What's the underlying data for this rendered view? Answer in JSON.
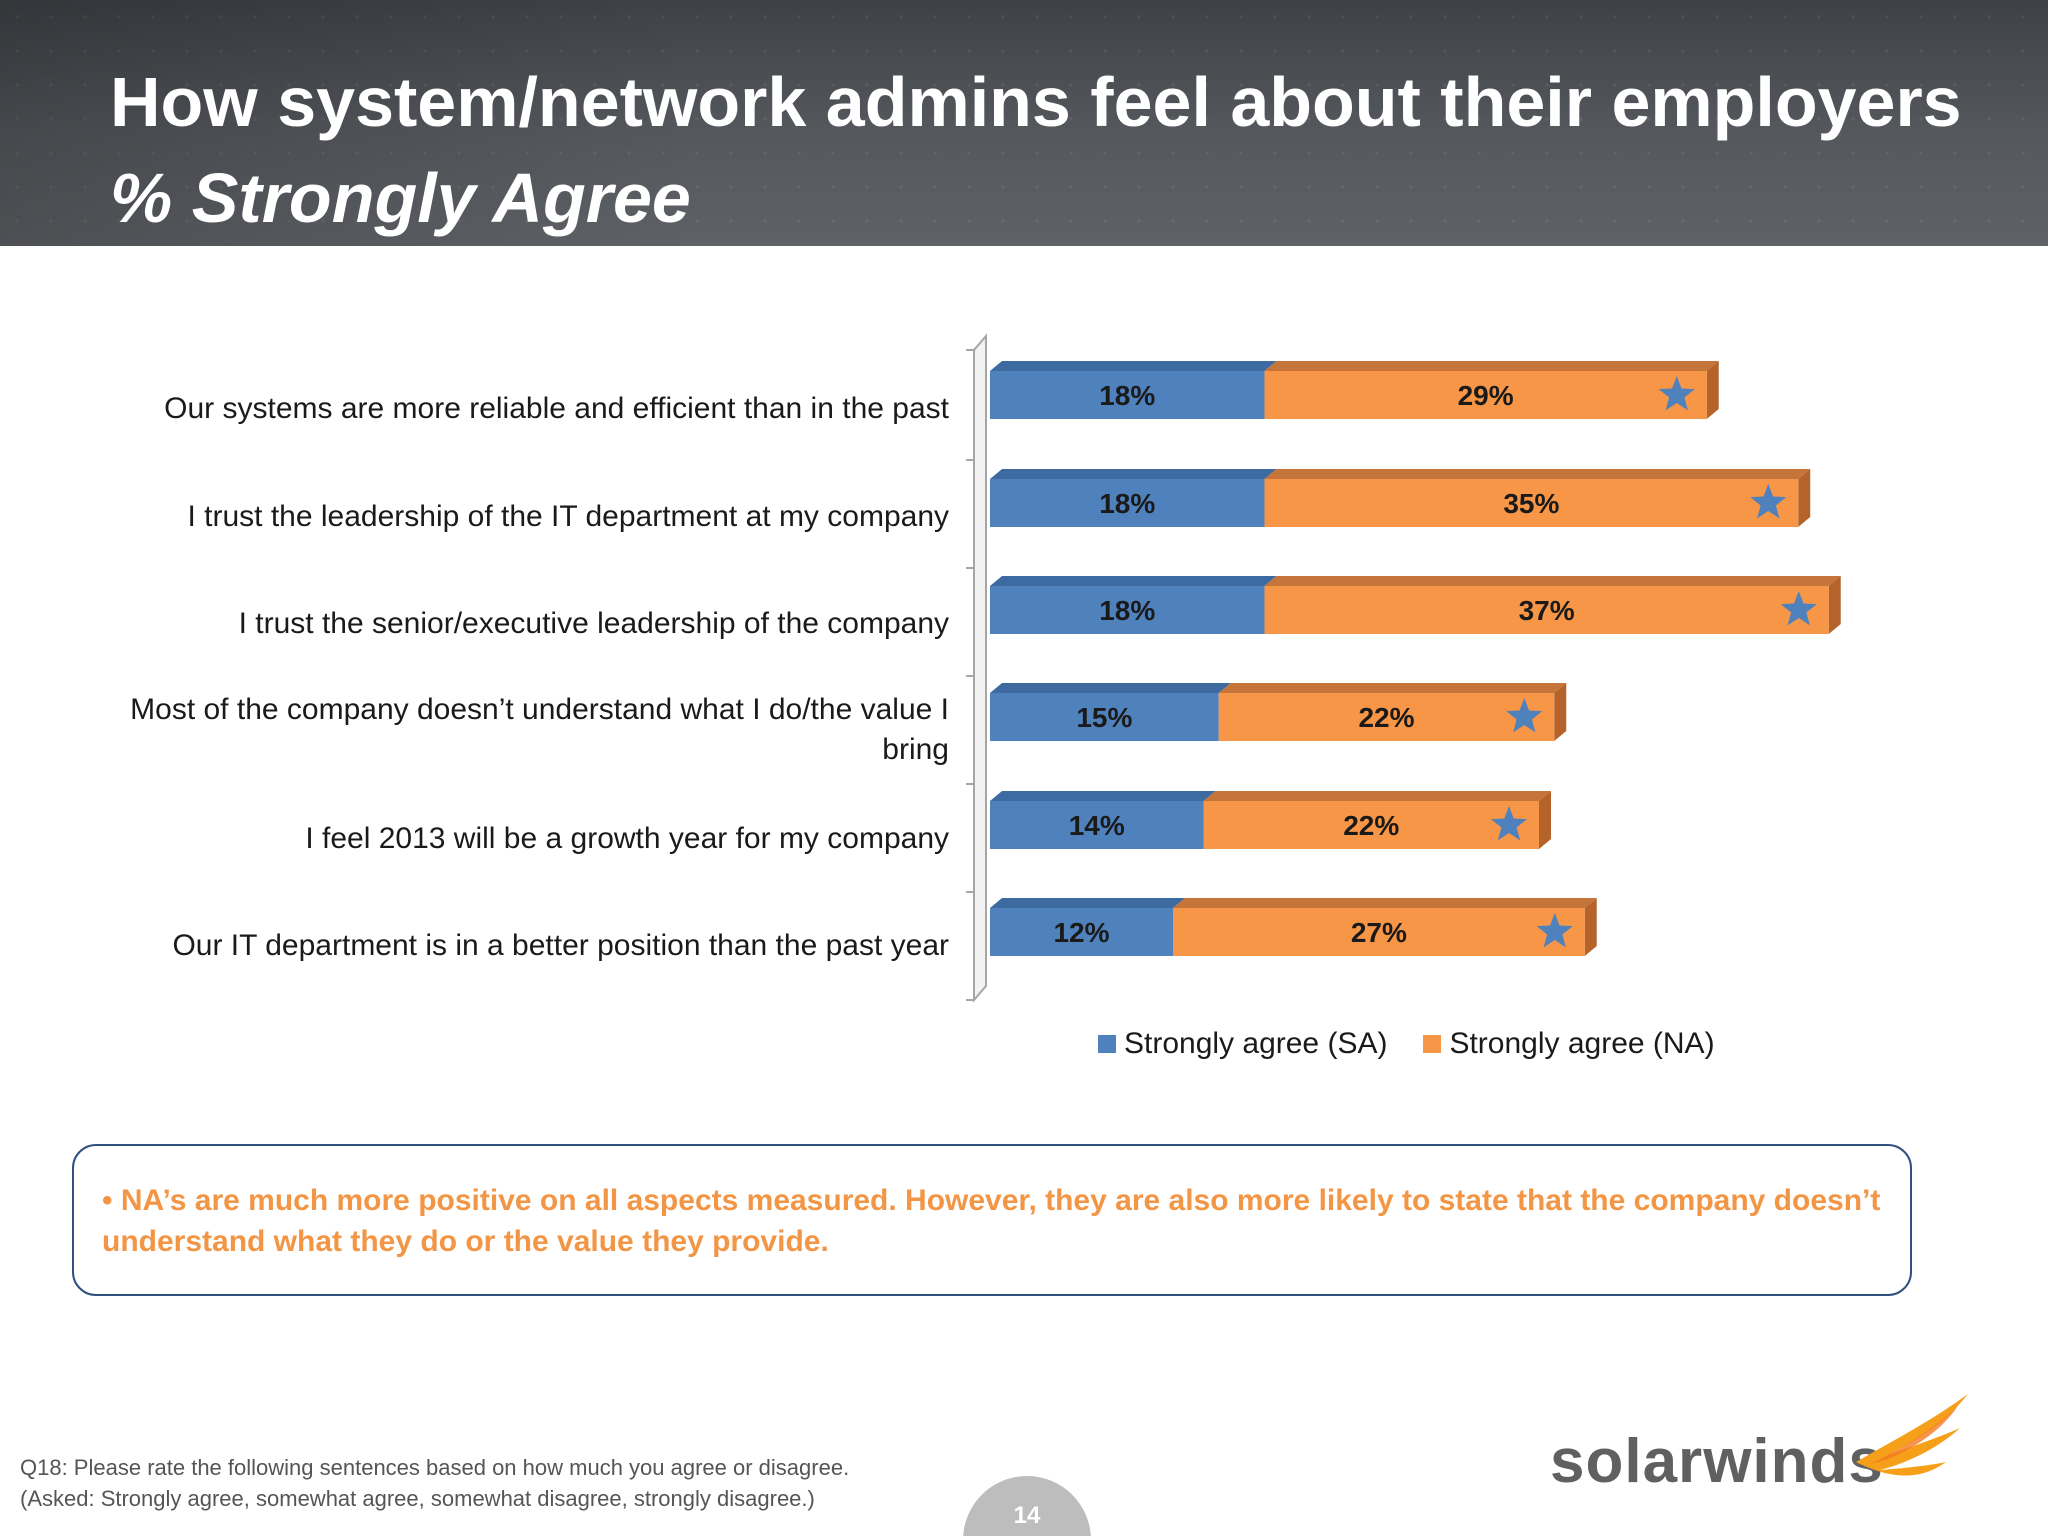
{
  "header": {
    "title": "How system/network admins feel about their employers",
    "subtitle": "% Strongly Agree"
  },
  "chart_data": {
    "type": "bar",
    "orientation": "horizontal",
    "stacked": true,
    "categories": [
      "Our systems are more reliable and efficient than in the past",
      "I trust the leadership of the IT department at my company",
      "I trust the senior/executive leadership of the company",
      "Most of the company doesn’t understand what I do/the value I bring",
      "I feel 2013 will be a growth year for my company",
      "Our IT department is in a better position than the past year"
    ],
    "series": [
      {
        "name": "Strongly agree (SA)",
        "color": "#4f81bd",
        "values": [
          18,
          18,
          18,
          15,
          14,
          12
        ],
        "labels": [
          "18%",
          "18%",
          "18%",
          "15%",
          "14%",
          "12%"
        ]
      },
      {
        "name": "Strongly agree (NA)",
        "color": "#f79646",
        "values": [
          29,
          35,
          37,
          22,
          22,
          27
        ],
        "labels": [
          "29%",
          "35%",
          "37%",
          "22%",
          "22%",
          "27%"
        ]
      }
    ],
    "markers": {
      "icon": "star-icon",
      "color": "#4f81bd",
      "on_series": "Strongly agree (NA)"
    },
    "legend": "bottom",
    "grid": false,
    "xlim": [
      0,
      60
    ]
  },
  "legend": {
    "sa_label": "Strongly agree (SA)",
    "na_label": "Strongly agree (NA)"
  },
  "callout": {
    "bullet": "•",
    "text": "NA’s are much more positive on all aspects measured.  However, they are also more likely to state that the company doesn’t understand what they do or the value they provide."
  },
  "footnote": {
    "line1": "Q18: Please rate the following sentences based on how much you agree or disagree.",
    "line2": "(Asked: Strongly agree, somewhat agree, somewhat disagree, strongly disagree.)"
  },
  "page_number": "14",
  "logo": {
    "text": "solarwinds",
    "accent": "#f6a01a"
  }
}
